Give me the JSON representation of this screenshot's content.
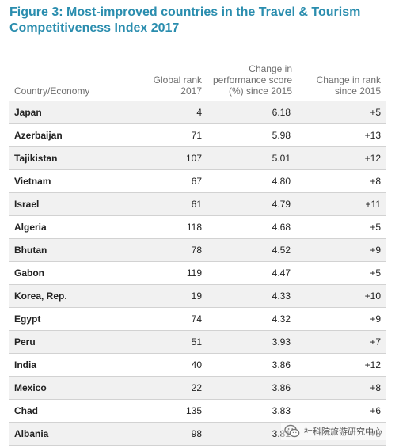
{
  "title": "Figure 3: Most-improved countries in the Travel & Tourism Competitiveness Index 2017",
  "columns": {
    "country": "Country/Economy",
    "rank": "Global rank 2017",
    "score": "Change in performance score (%) since 2015",
    "change": "Change in rank since 2015"
  },
  "rows": [
    {
      "country": "Japan",
      "rank": "4",
      "score": "6.18",
      "change": "+5"
    },
    {
      "country": "Azerbaijan",
      "rank": "71",
      "score": "5.98",
      "change": "+13"
    },
    {
      "country": "Tajikistan",
      "rank": "107",
      "score": "5.01",
      "change": "+12"
    },
    {
      "country": "Vietnam",
      "rank": "67",
      "score": "4.80",
      "change": "+8"
    },
    {
      "country": "Israel",
      "rank": "61",
      "score": "4.79",
      "change": "+11"
    },
    {
      "country": "Algeria",
      "rank": "118",
      "score": "4.68",
      "change": "+5"
    },
    {
      "country": "Bhutan",
      "rank": "78",
      "score": "4.52",
      "change": "+9"
    },
    {
      "country": "Gabon",
      "rank": "119",
      "score": "4.47",
      "change": "+5"
    },
    {
      "country": "Korea, Rep.",
      "rank": "19",
      "score": "4.33",
      "change": "+10"
    },
    {
      "country": "Egypt",
      "rank": "74",
      "score": "4.32",
      "change": "+9"
    },
    {
      "country": "Peru",
      "rank": "51",
      "score": "3.93",
      "change": "+7"
    },
    {
      "country": "India",
      "rank": "40",
      "score": "3.86",
      "change": "+12"
    },
    {
      "country": "Mexico",
      "rank": "22",
      "score": "3.86",
      "change": "+8"
    },
    {
      "country": "Chad",
      "rank": "135",
      "score": "3.83",
      "change": "+6"
    },
    {
      "country": "Albania",
      "rank": "98",
      "score": "3.81",
      "change": "+8"
    }
  ],
  "watermark": {
    "icon": "wechat-icon",
    "text": "社科院旅游研究中心"
  },
  "colors": {
    "title": "#2a8dae",
    "header_text": "#6f6f6f",
    "row_shade": "#f1f1f1"
  }
}
